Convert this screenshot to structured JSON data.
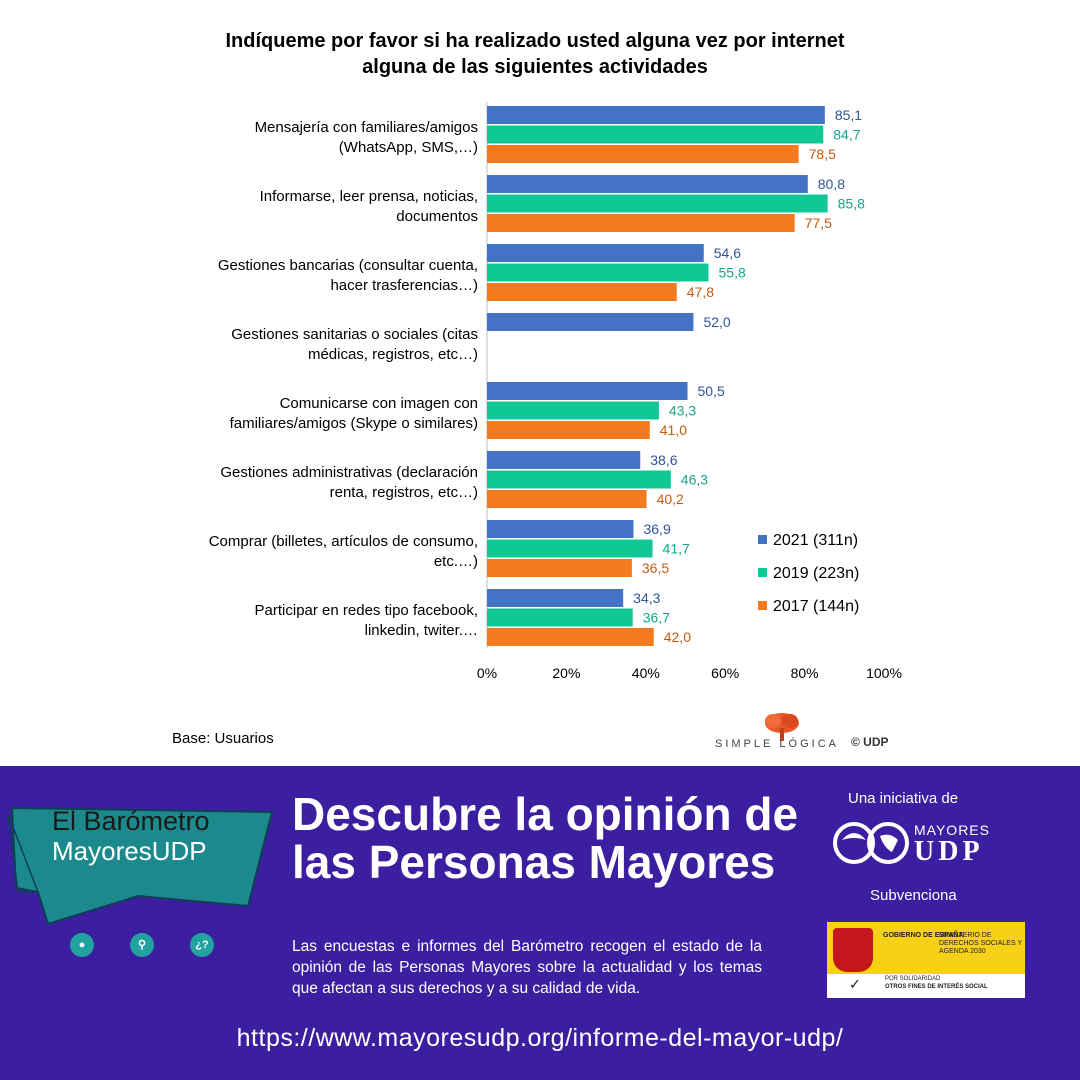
{
  "chart_data": {
    "type": "bar",
    "orientation": "horizontal",
    "title": "Indíqueme por favor si ha realizado usted alguna vez por internet alguna de las siguientes actividades",
    "title_lines": [
      "Indíqueme por favor si ha realizado usted alguna vez por internet",
      "alguna de las siguientes actividades"
    ],
    "categories": [
      [
        "Mensajería con familiares/amigos",
        "(WhatsApp, SMS,…)"
      ],
      [
        "Informarse, leer prensa, noticias,",
        "documentos"
      ],
      [
        "Gestiones bancarias (consultar cuenta,",
        "hacer trasferencias…)"
      ],
      [
        "Gestiones sanitarias o sociales (citas",
        "médicas, registros, etc…)"
      ],
      [
        "Comunicarse con imagen con",
        "familiares/amigos (Skype o similares)"
      ],
      [
        "Gestiones administrativas (declaración",
        "renta,  registros, etc…)"
      ],
      [
        "Comprar (billetes, artículos de consumo,",
        "etc.…)"
      ],
      [
        "Participar en redes tipo facebook,",
        "linkedin, twiter.…"
      ]
    ],
    "series": [
      {
        "name": "2021 (311n)",
        "color": "#4472c4",
        "label_color": "#2f5597",
        "values": [
          85.1,
          80.8,
          54.6,
          52.0,
          50.5,
          38.6,
          36.9,
          34.3
        ]
      },
      {
        "name": "2019 (223n)",
        "color": "#10c896",
        "label_color": "#14a58a",
        "values": [
          84.7,
          85.8,
          55.8,
          null,
          43.3,
          46.3,
          41.7,
          36.7
        ]
      },
      {
        "name": "2017 (144n)",
        "color": "#f47a20",
        "label_color": "#c55a11",
        "values": [
          78.5,
          77.5,
          47.8,
          null,
          41.0,
          40.2,
          36.5,
          42.0
        ]
      }
    ],
    "value_labels": [
      [
        "85,1",
        "84,7",
        "78,5"
      ],
      [
        "80,8",
        "85,8",
        "77,5"
      ],
      [
        "54,6",
        "55,8",
        "47,8"
      ],
      [
        "52,0",
        "",
        ""
      ],
      [
        "50,5",
        "43,3",
        "41,0"
      ],
      [
        "38,6",
        "46,3",
        "40,2"
      ],
      [
        "36,9",
        "41,7",
        "36,5"
      ],
      [
        "34,3",
        "36,7",
        "42,0"
      ]
    ],
    "x_ticks": [
      "0%",
      "20%",
      "40%",
      "60%",
      "80%",
      "100%"
    ],
    "xlim": [
      0,
      100
    ],
    "legend_position": "bottom-right",
    "grid": false,
    "note": "Base: Usuarios"
  },
  "footer": {
    "brand": "SIMPLE LÓGICA",
    "copyright": "© UDP"
  },
  "banner": {
    "badge_title": "El Barómetro",
    "badge_subtitle": "MayoresUDP",
    "headline": "Descubre la opinión de las Personas Mayores",
    "description": "Las encuestas e informes del Barómetro recogen el estado de la opinión de las Personas Mayores sobre la actualidad y los temas que afectan a sus derechos y a su calidad de vida.",
    "url": "https://www.mayoresudp.org/informe-del-mayor-udp/",
    "initiative_label": "Una iniciativa de",
    "org_line1": "MAYORES",
    "org_line2": "UDP",
    "subsidy_label": "Subvenciona",
    "gov_line1": "GOBIERNO DE ESPAÑA",
    "gov_line2": "MINISTERIO DE DERECHOS SOCIALES Y AGENDA 2030",
    "gov_line3": "POR SOLIDARIDAD",
    "gov_line4": "OTROS FINES DE INTERÉS SOCIAL",
    "icon_question": "¿?",
    "icons": [
      "user-icon",
      "search-icon",
      "question-icon"
    ],
    "colors": {
      "background": "#3b1fa0",
      "badge": "#1c8a8c",
      "icon": "#22a3a0"
    }
  }
}
